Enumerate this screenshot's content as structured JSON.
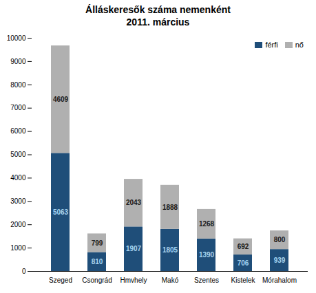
{
  "chart_data": {
    "type": "bar",
    "title": "Álláskeresők száma nemenként\n2011. március",
    "categories": [
      "Szeged",
      "Csongrád",
      "Hmvhely",
      "Makó",
      "Szentes",
      "Kistelek",
      "Mórahalom"
    ],
    "series": [
      {
        "name": "férfi",
        "color": "#1F4E79",
        "values": [
          5063,
          810,
          1907,
          1805,
          1390,
          706,
          939
        ]
      },
      {
        "name": "nő",
        "color": "#b0b0b0",
        "values": [
          4609,
          799,
          2043,
          1888,
          1268,
          692,
          800
        ]
      }
    ],
    "ylim": [
      0,
      10000
    ],
    "yticks": [
      0,
      1000,
      2000,
      3000,
      4000,
      5000,
      6000,
      7000,
      8000,
      9000,
      10000
    ],
    "stacked": true,
    "data_labels": true,
    "legend": "upper right",
    "grid": false
  }
}
